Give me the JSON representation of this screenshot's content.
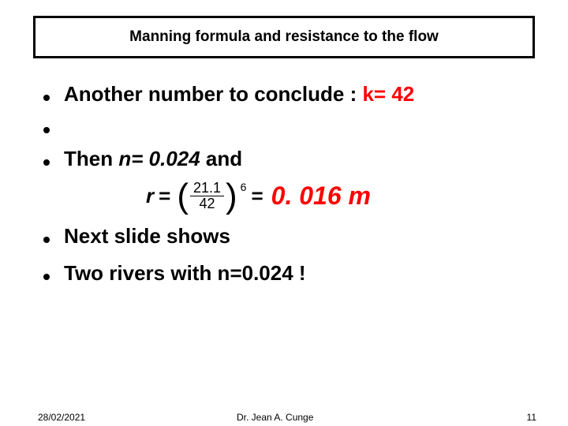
{
  "title": "Manning formula and resistance to the flow",
  "line1_a": "Another number to conclude : ",
  "line1_b": "k= 42",
  "line2_a": "Then  ",
  "line2_b": "n= 0.024",
  "line2_c": "         and",
  "eq": {
    "lhs": "r",
    "eq1": "=",
    "lparen": "(",
    "num": "21.1",
    "den": "42",
    "rparen": ")",
    "exp": "6",
    "eq2": "=",
    "result": "0. 016 m"
  },
  "line3": "Next slide shows",
  "line4": "Two rivers with n=0.024 !",
  "footer": {
    "date": "28/02/2021",
    "author": "Dr. Jean A. Cunge",
    "page": "11"
  },
  "colors": {
    "accent": "#ff0000",
    "text": "#000000",
    "border": "#000000",
    "background": "#ffffff"
  },
  "fonts": {
    "title_size_pt": 19,
    "body_size_pt": 26,
    "result_size_pt": 32,
    "footer_size_pt": 12
  }
}
